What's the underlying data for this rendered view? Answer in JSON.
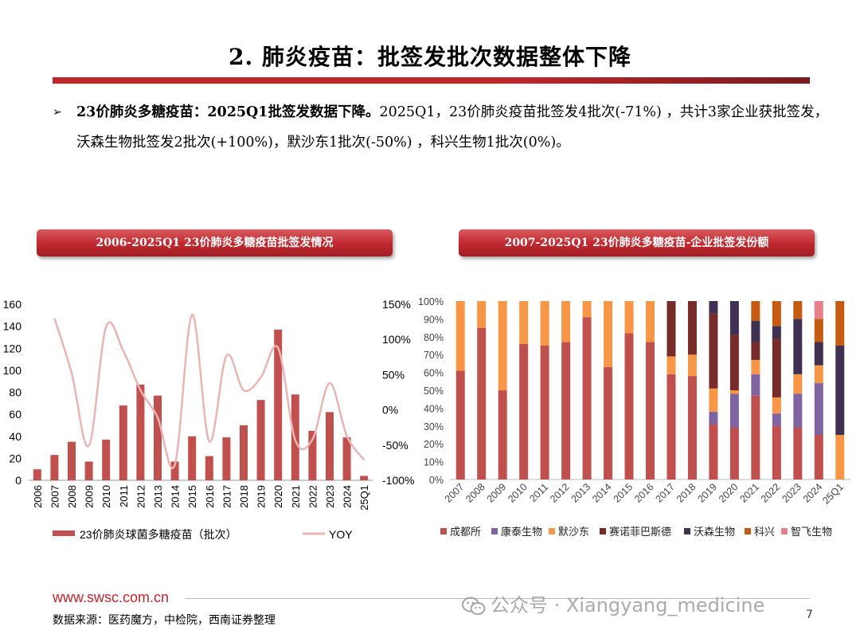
{
  "header": {
    "title": "2. 肺炎疫苗：批签发批次数据整体下降"
  },
  "bullet": {
    "arrow": "➢",
    "bold_text": "23价肺炎多糖疫苗：2025Q1批签发数据下降。",
    "text": "2025Q1，23价肺炎疫苗批签发4批次(-71%) ，共计3家企业获批签发，沃森生物批签发2批次(+100%)，默沙东1批次(-50%) ，科兴生物1批次(0%)。"
  },
  "panel_left": {
    "title": "2006-2025Q1 23价肺炎多糖疫苗批签发情况"
  },
  "panel_right": {
    "title": "2007-2025Q1 23价肺炎多糖疫苗-企业批签发份额"
  },
  "chart_data": [
    {
      "type": "bar",
      "categories": [
        "2006",
        "2007",
        "2008",
        "2009",
        "2010",
        "2011",
        "2012",
        "2013",
        "2014",
        "2015",
        "2016",
        "2017",
        "2018",
        "2019",
        "2020",
        "2021",
        "2022",
        "2023",
        "2024",
        "25Q1"
      ],
      "series": [
        {
          "name": "23价肺炎球菌多糖疫苗（批次）",
          "type": "bar",
          "axis": "left",
          "color": "#c0504d",
          "values": [
            10,
            23,
            35,
            17,
            37,
            68,
            87,
            77,
            17,
            40,
            22,
            39,
            50,
            73,
            137,
            78,
            45,
            62,
            39,
            4
          ]
        },
        {
          "name": "YOY",
          "type": "line",
          "axis": "right",
          "color": "#e8b4b4",
          "values": [
            null,
            130,
            52,
            -51,
            118,
            84,
            28,
            -11,
            -78,
            135,
            -45,
            77,
            28,
            46,
            88,
            -43,
            -42,
            38,
            -37,
            -71
          ]
        }
      ],
      "y_left": {
        "min": 0,
        "max": 160,
        "ticks": [
          "0",
          "20",
          "40",
          "60",
          "80",
          "100",
          "120",
          "140",
          "160"
        ]
      },
      "y_right": {
        "min": -100,
        "max": 150,
        "ticks": [
          "-100%",
          "-50%",
          "0%",
          "50%",
          "100%",
          "150%"
        ]
      }
    },
    {
      "type": "bar",
      "stacked": true,
      "categories": [
        "2007",
        "2008",
        "2009",
        "2010",
        "2011",
        "2012",
        "2013",
        "2014",
        "2015",
        "2016",
        "2017",
        "2018",
        "2019",
        "2020",
        "2021",
        "2022",
        "2023",
        "2024",
        "25Q1"
      ],
      "series": [
        {
          "name": "成都所",
          "color": "#c0504d",
          "values": [
            61,
            85,
            50,
            76,
            75,
            77,
            91,
            63,
            82,
            77,
            59,
            58,
            31,
            29,
            47,
            30,
            29,
            25,
            0
          ]
        },
        {
          "name": "康泰生物",
          "color": "#8064a2",
          "values": [
            0,
            0,
            0,
            0,
            0,
            0,
            0,
            0,
            0,
            0,
            0,
            0,
            7,
            19,
            12,
            7,
            19,
            29,
            0
          ]
        },
        {
          "name": "默沙东",
          "color": "#f79646",
          "values": [
            39,
            15,
            50,
            24,
            25,
            23,
            9,
            37,
            18,
            23,
            10,
            12,
            13,
            2,
            8,
            9,
            11,
            10,
            25
          ]
        },
        {
          "name": "赛诺菲巴斯德",
          "color": "#772c2a",
          "values": [
            0,
            0,
            0,
            0,
            0,
            0,
            0,
            0,
            0,
            0,
            31,
            30,
            42,
            31,
            10,
            33,
            0,
            0,
            0
          ]
        },
        {
          "name": "沃森生物",
          "color": "#403152",
          "values": [
            0,
            0,
            0,
            0,
            0,
            0,
            0,
            0,
            0,
            0,
            0,
            0,
            7,
            19,
            12,
            7,
            31,
            13,
            50
          ]
        },
        {
          "name": "科兴",
          "color": "#c55a11",
          "values": [
            0,
            0,
            0,
            0,
            0,
            0,
            0,
            0,
            0,
            0,
            0,
            0,
            0,
            0,
            11,
            14,
            10,
            13,
            25
          ]
        },
        {
          "name": "智飞生物",
          "color": "#e6808a",
          "values": [
            0,
            0,
            0,
            0,
            0,
            0,
            0,
            0,
            0,
            0,
            0,
            0,
            0,
            0,
            0,
            0,
            0,
            10,
            0
          ]
        }
      ],
      "y": {
        "min": 0,
        "max": 100,
        "ticks": [
          "0%",
          "10%",
          "20%",
          "30%",
          "40%",
          "50%",
          "60%",
          "70%",
          "80%",
          "90%",
          "100%"
        ]
      }
    }
  ],
  "footer": {
    "url": "www.swsc.com.cn",
    "source": "数据来源：医药魔方，中检院，西南证券整理",
    "page": "7",
    "watermark": "公众号 · Xiangyang_medicine"
  }
}
